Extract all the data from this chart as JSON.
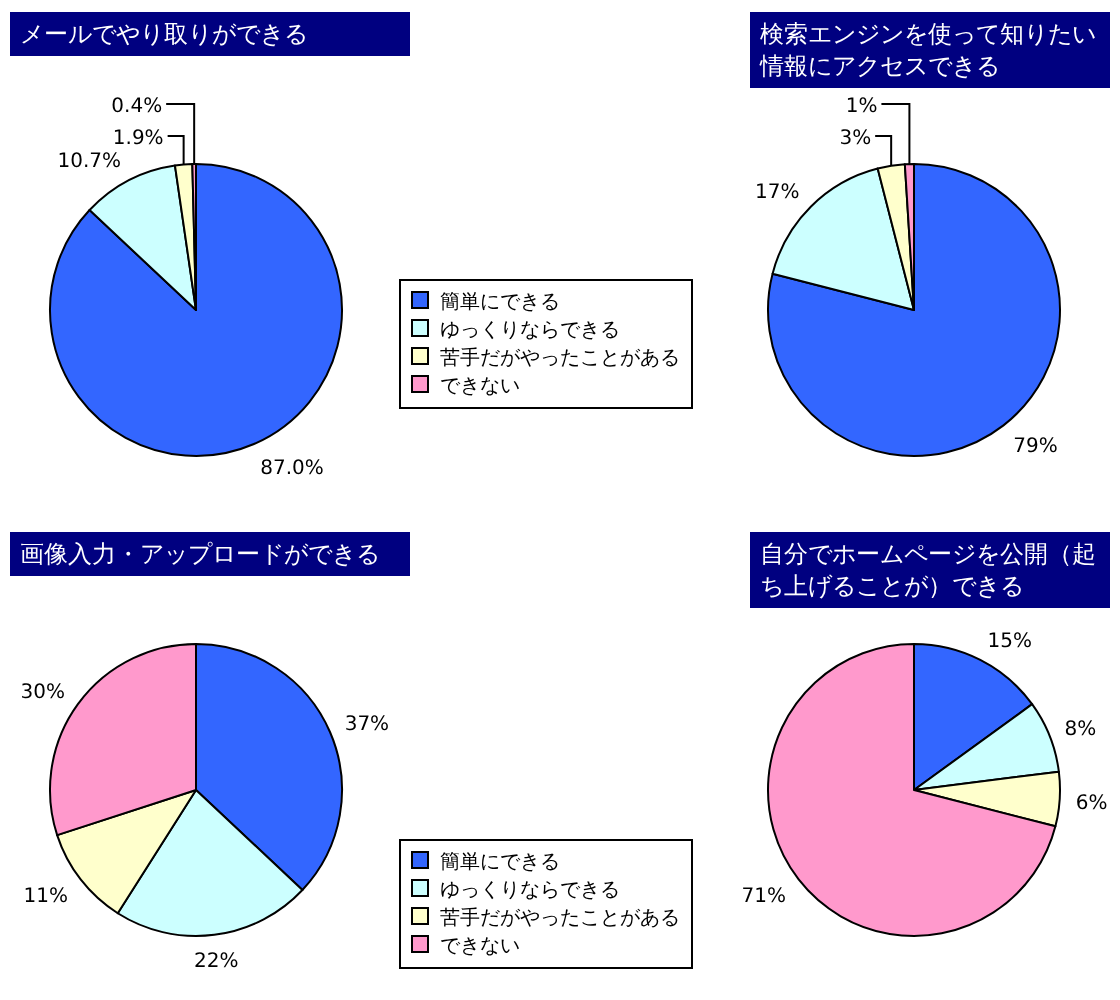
{
  "chart_data": [
    {
      "type": "pie",
      "title": "メールでやり取りができる",
      "categories": [
        "簡単にできる",
        "ゆっくりならできる",
        "苦手だがやったことがある",
        "できない"
      ],
      "values": [
        87.0,
        10.7,
        1.9,
        0.4
      ],
      "value_labels": [
        "87.0%",
        "10.7%",
        "1.9%",
        "0.4%"
      ],
      "colors": [
        "#3366ff",
        "#ccffff",
        "#ffffcc",
        "#ff99cc"
      ],
      "legend": "right"
    },
    {
      "type": "pie",
      "title": "検索エンジンを使って知りたい情報にアクセスできる",
      "categories": [
        null,
        null,
        null,
        null
      ],
      "values": [
        79,
        17,
        3,
        1
      ],
      "value_labels": [
        "79%",
        "17%",
        "3%",
        "1%"
      ],
      "colors": [
        "#3366ff",
        "#ccffff",
        "#ffffcc",
        "#ff99cc"
      ]
    },
    {
      "type": "pie",
      "title": "画像入力・アップロードができる",
      "categories": [
        "簡単にできる",
        "ゆっくりならできる",
        "苦手だがやったことがある",
        "できない"
      ],
      "values": [
        37,
        22,
        11,
        30
      ],
      "value_labels": [
        "37%",
        "22%",
        "11%",
        "30%"
      ],
      "colors": [
        "#3366ff",
        "#ccffff",
        "#ffffcc",
        "#ff99cc"
      ],
      "legend": "right"
    },
    {
      "type": "pie",
      "title": "自分でホームページを公開（起ち上げることが）できる",
      "categories": [
        null,
        null,
        null,
        null
      ],
      "values": [
        15,
        8,
        6,
        71
      ],
      "value_labels": [
        "15%",
        "8%",
        "6%",
        "71%"
      ],
      "colors": [
        "#3366ff",
        "#ccffff",
        "#ffffcc",
        "#ff99cc"
      ]
    }
  ]
}
